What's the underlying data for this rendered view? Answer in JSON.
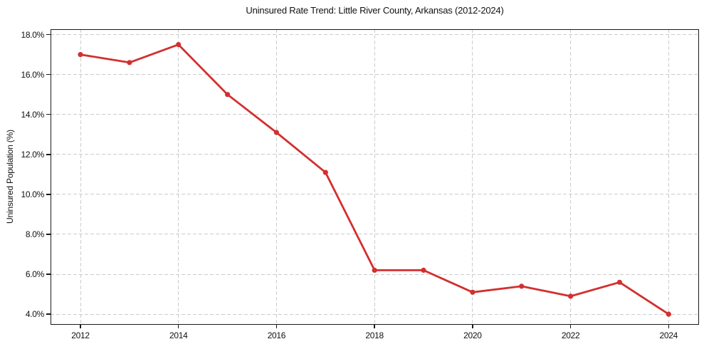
{
  "chart_data": {
    "type": "line",
    "title": "Uninsured Rate Trend: Little River County, Arkansas (2012-2024)",
    "xlabel": "",
    "ylabel": "Uninsured Population (%)",
    "x": [
      2012,
      2013,
      2014,
      2015,
      2016,
      2017,
      2018,
      2019,
      2020,
      2021,
      2022,
      2023,
      2024
    ],
    "series": [
      {
        "name": "Uninsured rate",
        "values": [
          17.0,
          16.6,
          17.5,
          15.0,
          13.1,
          11.1,
          6.2,
          6.2,
          5.1,
          5.4,
          4.9,
          5.6,
          4.0
        ]
      }
    ],
    "xlim": [
      2011.39,
      2024.62
    ],
    "ylim": [
      3.47,
      18.27
    ],
    "xticks": [
      2012,
      2014,
      2016,
      2018,
      2020,
      2022,
      2024
    ],
    "xtick_labels": [
      "2012",
      "2014",
      "2016",
      "2018",
      "2020",
      "2022",
      "2024"
    ],
    "yticks": [
      4,
      6,
      8,
      10,
      12,
      14,
      16,
      18
    ],
    "ytick_labels": [
      "4.0%",
      "6.0%",
      "8.0%",
      "10.0%",
      "12.0%",
      "14.0%",
      "16.0%",
      "18.0%"
    ],
    "grid": true,
    "grid_style": "dashed",
    "legend": false,
    "colors": {
      "line": "#d32f2f",
      "marker": "#d32f2f",
      "grid": "#cccccc",
      "spine": "#1a1a1a",
      "text": "#111111",
      "background": "#ffffff"
    },
    "marker": "circle",
    "line_width": 2.8,
    "marker_radius": 3.6
  }
}
